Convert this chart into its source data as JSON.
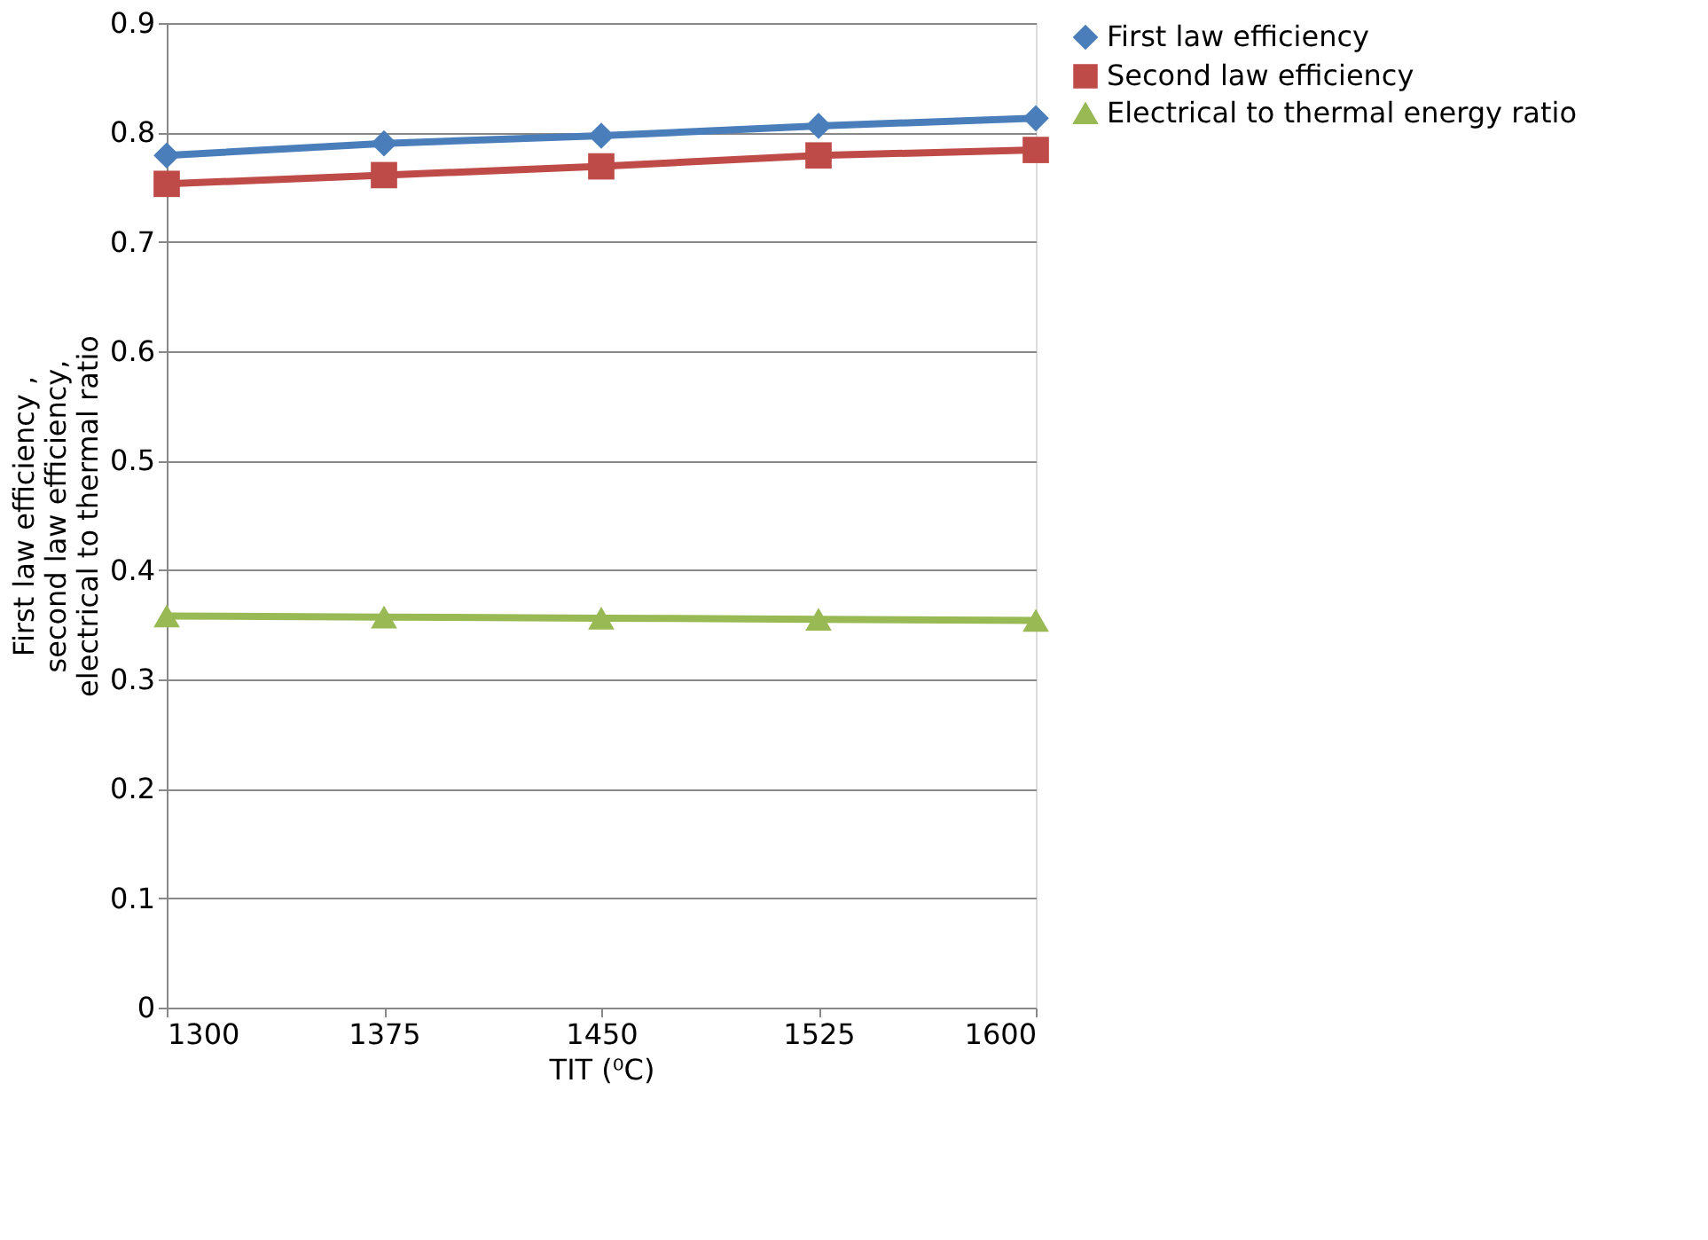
{
  "chart_data": {
    "type": "line",
    "xlabel": "TIT (⁰C)",
    "ylabel": "First law efficiency , second law efficiency, electrical to thermal ratio",
    "x": [
      1300,
      1375,
      1450,
      1525,
      1600
    ],
    "xlim": [
      1300,
      1600
    ],
    "xticks": [
      1300,
      1375,
      1450,
      1525,
      1600
    ],
    "ylim": [
      0,
      0.9
    ],
    "yticks": [
      0,
      0.1,
      0.2,
      0.3,
      0.4,
      0.5,
      0.6,
      0.7,
      0.8,
      0.9
    ],
    "grid": "y",
    "legend": "right",
    "series": [
      {
        "name": "First law efficiency",
        "color": "#4a7ebb",
        "marker": "diamond",
        "values": [
          0.779,
          0.79,
          0.797,
          0.806,
          0.813
        ]
      },
      {
        "name": "Second law efficiency",
        "color": "#be4b48",
        "marker": "square",
        "values": [
          0.753,
          0.761,
          0.769,
          0.779,
          0.784
        ]
      },
      {
        "name": "Electrical to thermal energy ratio",
        "color": "#98b954",
        "marker": "triangle",
        "values": [
          0.358,
          0.357,
          0.356,
          0.355,
          0.354
        ]
      }
    ]
  }
}
